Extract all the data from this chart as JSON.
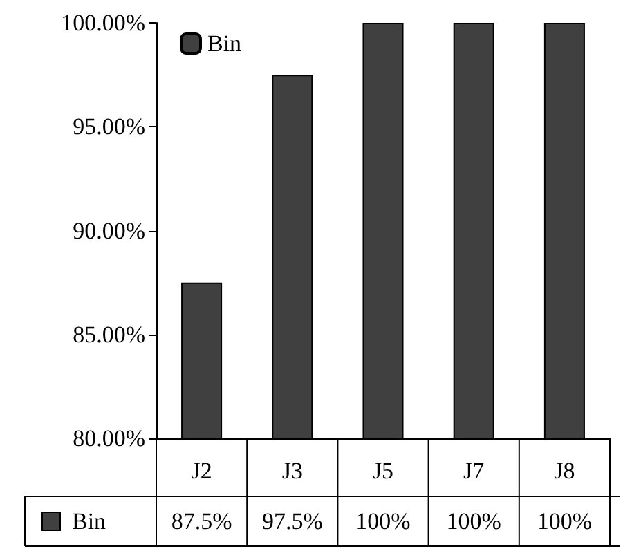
{
  "chart_data": {
    "type": "bar",
    "categories": [
      "J2",
      "J3",
      "J5",
      "J7",
      "J8"
    ],
    "series": [
      {
        "name": "Bin",
        "color": "#404040",
        "values": [
          87.5,
          97.5,
          100,
          100,
          100
        ],
        "value_labels": [
          "87.5%",
          "97.5%",
          "100%",
          "100%",
          "100%"
        ]
      }
    ],
    "ylim": [
      80,
      100
    ],
    "yticks": [
      {
        "value": 80,
        "label": "80.00%"
      },
      {
        "value": 85,
        "label": "85.00%"
      },
      {
        "value": 90,
        "label": "90.00%"
      },
      {
        "value": 95,
        "label": "95.00%"
      },
      {
        "value": 100,
        "label": "100.00%"
      }
    ],
    "grid": false,
    "legend": "top left"
  }
}
